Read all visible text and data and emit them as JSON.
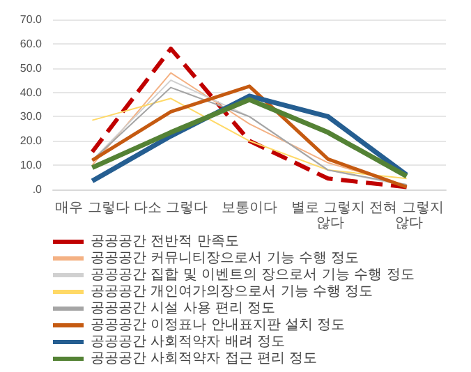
{
  "chart_data": {
    "type": "line",
    "categories": [
      "매우 그렇다",
      "다소 그렇다",
      "보통이다",
      "별로 그렇지 않다",
      "전혀 그렇지 않다"
    ],
    "series": [
      {
        "name": "공공공간 전반적 만족도",
        "color": "#c00000",
        "line_style": "dashed",
        "values": [
          15.5,
          58,
          20,
          4.5,
          1
        ]
      },
      {
        "name": "공공공간 커뮤니티장으로서 기능 수행 정도",
        "color": "#f4b183",
        "values": [
          10,
          48,
          27,
          11,
          1.5
        ]
      },
      {
        "name": "공공공간 집합 및 이벤트의 장으로서 기능 수행 정도",
        "color": "#d0d0d0",
        "values": [
          12,
          45,
          30,
          8,
          1.5
        ]
      },
      {
        "name": "공공공간 개인여가의장으로서 기능 수행 정도",
        "color": "#ffd966",
        "values": [
          28.5,
          37.5,
          20,
          8,
          4.5
        ]
      },
      {
        "name": "공공공간 시설 사용 편리 정도",
        "color": "#a5a5a5",
        "values": [
          12,
          42,
          30,
          8,
          2
        ]
      },
      {
        "name": "공공공간 이정표나 안내표지판 설치 정도",
        "color": "#c55a11",
        "values": [
          12,
          32,
          42.5,
          12.5,
          1
        ]
      },
      {
        "name": "공공공간 사회적약자 배려 정도",
        "color": "#255e91",
        "values": [
          3.5,
          22,
          38.5,
          30,
          6
        ]
      },
      {
        "name": "공공공간 사회적약자 접근 편리 정도",
        "color": "#548235",
        "values": [
          9,
          23.5,
          37,
          23.5,
          5.5
        ]
      }
    ],
    "ylim": [
      0,
      70
    ],
    "yticks": [
      {
        "value": 0,
        "label": ".0"
      },
      {
        "value": 10,
        "label": "10.0"
      },
      {
        "value": 20,
        "label": "20.0"
      },
      {
        "value": 30,
        "label": "30.0"
      },
      {
        "value": 40,
        "label": "40.0"
      },
      {
        "value": 50,
        "label": "50.0"
      },
      {
        "value": 60,
        "label": "60.0"
      },
      {
        "value": 70,
        "label": "70.0"
      }
    ],
    "grid": "y",
    "legend": "bottom",
    "marker": "none"
  }
}
